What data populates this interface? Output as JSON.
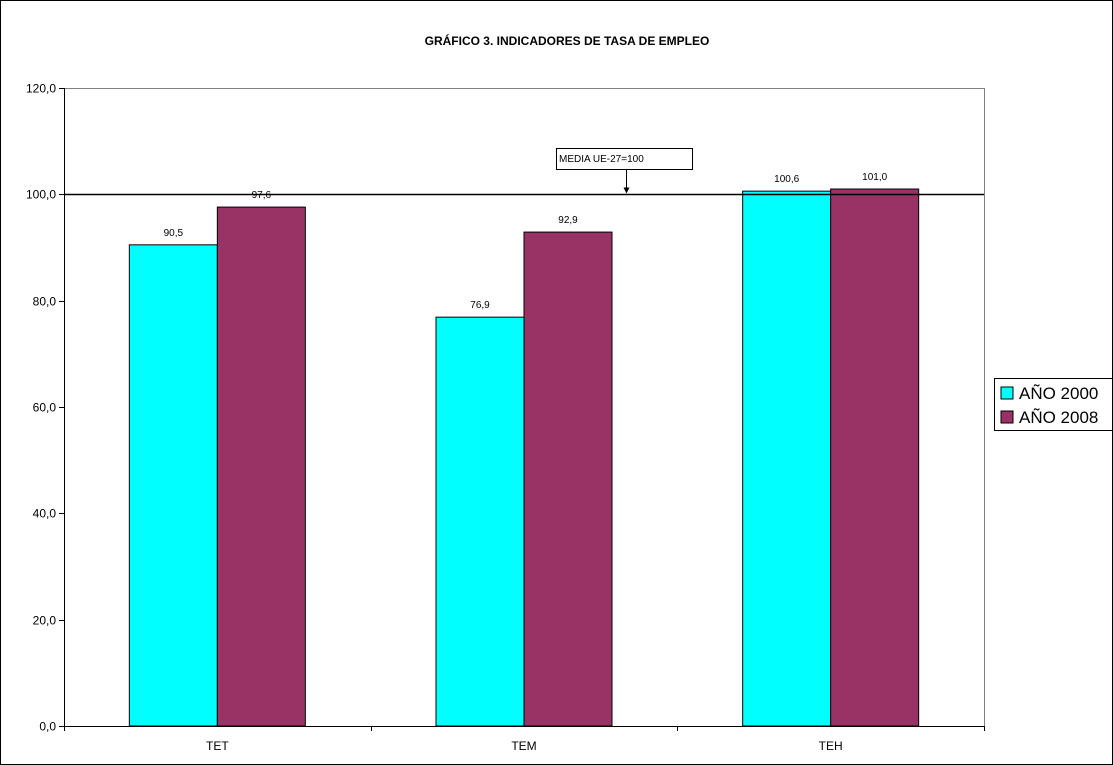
{
  "chart_data": {
    "type": "bar",
    "title": "GRÁFICO 3. INDICADORES DE TASA DE EMPLEO",
    "xlabel": "",
    "ylabel": "",
    "categories": [
      "TET",
      "TEM",
      "TEH"
    ],
    "series": [
      {
        "name": "AÑO 2000",
        "values": [
          90.5,
          76.9,
          100.6
        ],
        "labels": [
          "90,5",
          "76,9",
          "100,6"
        ],
        "color": "#00FFFF"
      },
      {
        "name": "AÑO 2008",
        "values": [
          97.6,
          92.9,
          101.0
        ],
        "labels": [
          "97,6",
          "92,9",
          "101,0"
        ],
        "color": "#993366"
      }
    ],
    "ylim": [
      0,
      120
    ],
    "yticks": [
      0,
      20,
      40,
      60,
      80,
      100,
      120
    ],
    "ytick_labels": [
      "0,0",
      "20,0",
      "40,0",
      "60,0",
      "80,0",
      "100,0",
      "120,0"
    ],
    "reference_line": {
      "value": 100,
      "label": "MEDIA UE-27=100"
    },
    "grid": false,
    "legend_position": "right"
  }
}
